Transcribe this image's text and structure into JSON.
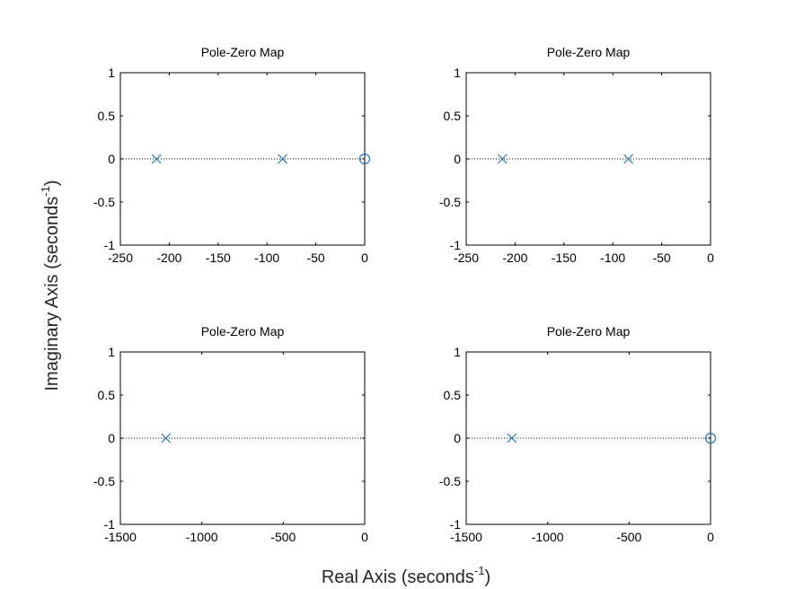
{
  "figure": {
    "xlabel": "Real Axis (seconds",
    "xlabel_sup": "-1",
    "xlabel_end": ")",
    "ylabel": "Imaginary Axis (seconds",
    "ylabel_sup": "-1",
    "ylabel_end": ")"
  },
  "colors": {
    "marker": "#1f77b4",
    "axis": "#000000",
    "zero_line": "#000000"
  },
  "chart_data": [
    {
      "type": "scatter",
      "title": "Pole-Zero Map",
      "xlim": [
        -250,
        0
      ],
      "ylim": [
        -1,
        1
      ],
      "xticks": [
        -250,
        -200,
        -150,
        -100,
        -50,
        0
      ],
      "yticks": [
        -1,
        -0.5,
        0,
        0.5,
        1
      ],
      "poles": [
        {
          "x": -213,
          "y": 0
        },
        {
          "x": -84,
          "y": 0
        }
      ],
      "zeros": [
        {
          "x": 0,
          "y": 0
        }
      ]
    },
    {
      "type": "scatter",
      "title": "Pole-Zero Map",
      "xlim": [
        -250,
        0
      ],
      "ylim": [
        -1,
        1
      ],
      "xticks": [
        -250,
        -200,
        -150,
        -100,
        -50,
        0
      ],
      "yticks": [
        -1,
        -0.5,
        0,
        0.5,
        1
      ],
      "poles": [
        {
          "x": -213,
          "y": 0
        },
        {
          "x": -84,
          "y": 0
        }
      ],
      "zeros": []
    },
    {
      "type": "scatter",
      "title": "Pole-Zero Map",
      "xlim": [
        -1500,
        0
      ],
      "ylim": [
        -1,
        1
      ],
      "xticks": [
        -1500,
        -1000,
        -500,
        0
      ],
      "yticks": [
        -1,
        -0.5,
        0,
        0.5,
        1
      ],
      "poles": [
        {
          "x": -1220,
          "y": 0
        }
      ],
      "zeros": []
    },
    {
      "type": "scatter",
      "title": "Pole-Zero Map",
      "xlim": [
        -1500,
        0
      ],
      "ylim": [
        -1,
        1
      ],
      "xticks": [
        -1500,
        -1000,
        -500,
        0
      ],
      "yticks": [
        -1,
        -0.5,
        0,
        0.5,
        1
      ],
      "poles": [
        {
          "x": -1220,
          "y": 0
        }
      ],
      "zeros": [
        {
          "x": 0,
          "y": 0
        }
      ]
    }
  ]
}
